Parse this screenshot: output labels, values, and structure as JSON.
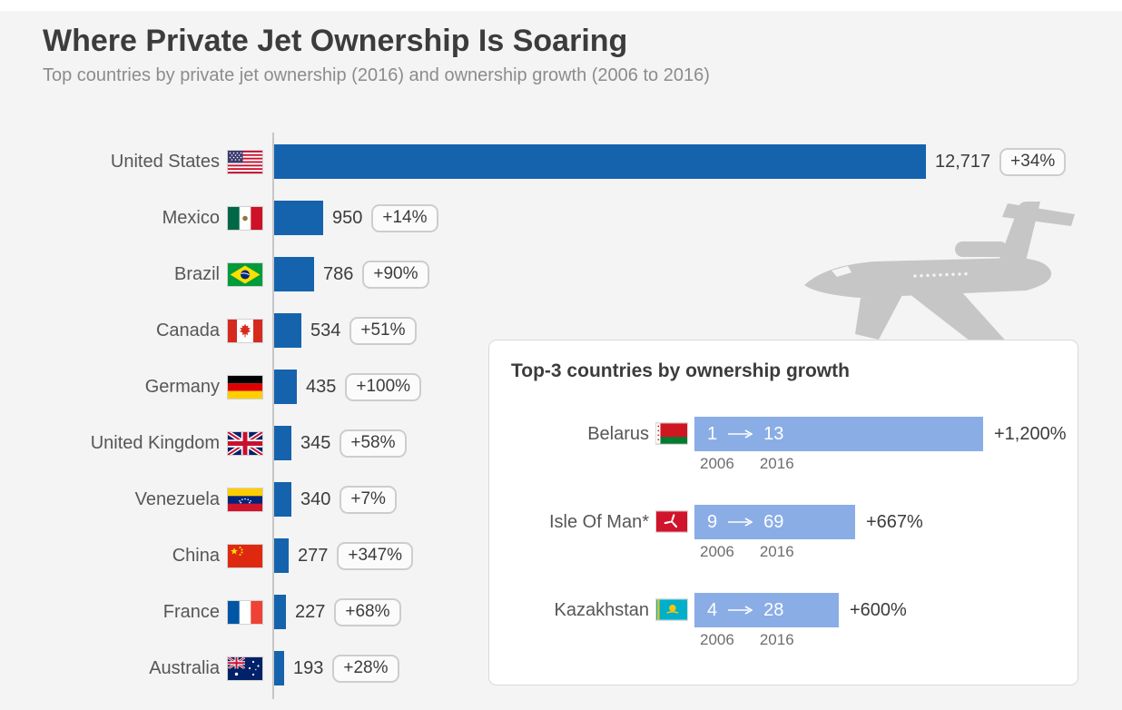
{
  "header": {
    "title": "Where Private Jet Ownership Is Soaring",
    "subtitle": "Top countries by private jet ownership (2016) and ownership growth (2006 to 2016)"
  },
  "colors": {
    "background": "#f4f4f4",
    "bar": "#1563ad",
    "inset_bar": "#8aade6",
    "badge_border": "#cdcdcd",
    "axis_line": "#c6c6c6",
    "plane": "#c6c6c6"
  },
  "main_rows": [
    {
      "label": "United States",
      "value": 12717,
      "value_label": "12,717",
      "growth": "+34%"
    },
    {
      "label": "Mexico",
      "value": 950,
      "value_label": "950",
      "growth": "+14%"
    },
    {
      "label": "Brazil",
      "value": 786,
      "value_label": "786",
      "growth": "+90%"
    },
    {
      "label": "Canada",
      "value": 534,
      "value_label": "534",
      "growth": "+51%"
    },
    {
      "label": "Germany",
      "value": 435,
      "value_label": "435",
      "growth": "+100%"
    },
    {
      "label": "United Kingdom",
      "value": 345,
      "value_label": "345",
      "growth": "+58%"
    },
    {
      "label": "Venezuela",
      "value": 340,
      "value_label": "340",
      "growth": "+7%"
    },
    {
      "label": "China",
      "value": 277,
      "value_label": "277",
      "growth": "+347%"
    },
    {
      "label": "France",
      "value": 227,
      "value_label": "227",
      "growth": "+68%"
    },
    {
      "label": "Australia",
      "value": 193,
      "value_label": "193",
      "growth": "+28%"
    }
  ],
  "inset": {
    "title": "Top-3 countries by ownership growth",
    "rows": [
      {
        "label": "Belarus",
        "from": "1",
        "to": "13",
        "from_year": "2006",
        "to_year": "2016",
        "growth": "+1,200%",
        "growth_value": 1200
      },
      {
        "label": "Isle Of Man*",
        "from": "9",
        "to": "69",
        "from_year": "2006",
        "to_year": "2016",
        "growth": "+667%",
        "growth_value": 667
      },
      {
        "label": "Kazakhstan",
        "from": "4",
        "to": "28",
        "from_year": "2006",
        "to_year": "2016",
        "growth": "+600%",
        "growth_value": 600
      }
    ]
  },
  "chart_data": [
    {
      "type": "bar",
      "orientation": "horizontal",
      "title": "Where Private Jet Ownership Is Soaring",
      "subtitle": "Top countries by private jet ownership (2016) and ownership growth (2006 to 2016)",
      "categories": [
        "United States",
        "Mexico",
        "Brazil",
        "Canada",
        "Germany",
        "United Kingdom",
        "Venezuela",
        "China",
        "France",
        "Australia"
      ],
      "values": [
        12717,
        950,
        786,
        534,
        435,
        345,
        340,
        277,
        227,
        193
      ],
      "annotations": [
        "+34%",
        "+14%",
        "+90%",
        "+51%",
        "+100%",
        "+58%",
        "+7%",
        "+347%",
        "+68%",
        "+28%"
      ],
      "xlabel": "",
      "ylabel": "",
      "xlim": [
        0,
        12717
      ],
      "grid": false,
      "legend": false
    },
    {
      "type": "bar",
      "orientation": "horizontal",
      "title": "Top-3 countries by ownership growth",
      "categories": [
        "Belarus",
        "Isle Of Man*",
        "Kazakhstan"
      ],
      "series": [
        {
          "name": "2006",
          "values": [
            1,
            9,
            4
          ]
        },
        {
          "name": "2016",
          "values": [
            13,
            69,
            28
          ]
        }
      ],
      "annotations": [
        "+1,200%",
        "+667%",
        "+600%"
      ],
      "grid": false,
      "legend": false
    }
  ]
}
